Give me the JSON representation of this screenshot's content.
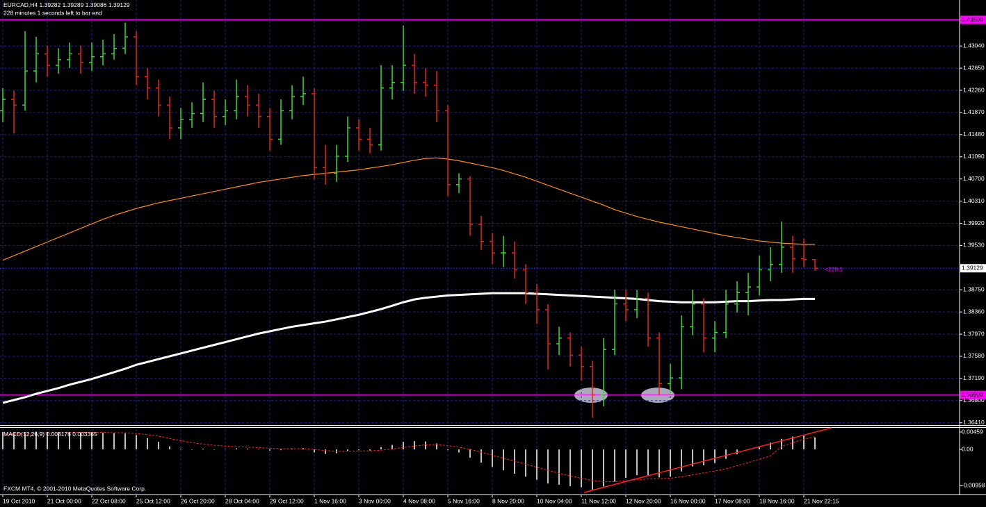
{
  "chart_data": [
    {
      "type": "ohlc",
      "title": "EURCAD,H4",
      "subtitle": "228 minutes 1 seconds left to bar end",
      "footer": "FXCM MT4, © 2001-2010 MetaQuotes Software Corp.",
      "timer_label": "<228:1",
      "categories": [
        "19 Oct 2010",
        null,
        null,
        null,
        "21 Oct 00:00",
        null,
        null,
        null,
        "22 Oct 08:00",
        null,
        null,
        null,
        "25 Oct 12:00",
        null,
        null,
        null,
        "26 Oct 20:00",
        null,
        null,
        null,
        "28 Oct 04:00",
        null,
        null,
        null,
        "29 Oct 12:00",
        null,
        null,
        null,
        "1 Nov 16:00",
        null,
        null,
        null,
        "3 Nov 00:00",
        null,
        null,
        null,
        "4 Nov 08:00",
        null,
        null,
        null,
        "5 Nov 16:00",
        null,
        null,
        null,
        "8 Nov 20:00",
        null,
        null,
        null,
        "10 Nov 04:00",
        null,
        null,
        null,
        "11 Nov 12:00",
        null,
        null,
        null,
        "12 Nov 20:00",
        null,
        null,
        null,
        "16 Nov 00:00",
        null,
        null,
        null,
        "17 Nov 08:00",
        null,
        null,
        null,
        "18 Nov 16:00",
        null,
        null,
        null,
        "21 Nov 22:15",
        null
      ],
      "open": [
        1.419,
        1.421,
        1.42,
        1.426,
        1.429,
        1.427,
        1.428,
        1.429,
        1.4275,
        1.4285,
        1.429,
        1.43,
        1.432,
        1.425,
        1.423,
        1.42,
        1.416,
        1.4175,
        1.4185,
        1.421,
        1.418,
        1.419,
        1.4215,
        1.42,
        1.418,
        1.414,
        1.419,
        1.4215,
        1.422,
        1.409,
        1.408,
        1.411,
        1.416,
        1.414,
        1.413,
        1.423,
        1.424,
        1.427,
        1.424,
        1.4235,
        1.419,
        1.406,
        1.407,
        1.399,
        1.396,
        1.394,
        1.394,
        1.391,
        1.387,
        1.384,
        1.378,
        1.379,
        1.376,
        1.374,
        1.369,
        1.377,
        1.385,
        1.384,
        1.386,
        1.379,
        1.371,
        1.372,
        1.381,
        1.385,
        1.379,
        1.38,
        1.385,
        1.387,
        1.388,
        1.391,
        1.392,
        1.395,
        1.393,
        1.39282
      ],
      "high": [
        1.423,
        1.4225,
        1.433,
        1.432,
        1.4305,
        1.43,
        1.431,
        1.4305,
        1.431,
        1.4315,
        1.4325,
        1.4345,
        1.433,
        1.4265,
        1.4245,
        1.4215,
        1.4195,
        1.4205,
        1.424,
        1.4225,
        1.421,
        1.4245,
        1.4235,
        1.422,
        1.4195,
        1.421,
        1.4235,
        1.425,
        1.423,
        1.413,
        1.413,
        1.418,
        1.4175,
        1.416,
        1.427,
        1.427,
        1.434,
        1.429,
        1.4265,
        1.426,
        1.42,
        1.408,
        1.4075,
        1.4005,
        1.3975,
        1.397,
        1.396,
        1.392,
        1.3885,
        1.385,
        1.381,
        1.38,
        1.3775,
        1.375,
        1.379,
        1.3875,
        1.3875,
        1.3875,
        1.387,
        1.38,
        1.3745,
        1.383,
        1.3875,
        1.386,
        1.382,
        1.3875,
        1.389,
        1.3905,
        1.3935,
        1.395,
        1.3995,
        1.397,
        1.3965,
        1.39289
      ],
      "low": [
        1.417,
        1.415,
        1.419,
        1.424,
        1.425,
        1.4255,
        1.4265,
        1.4255,
        1.426,
        1.427,
        1.428,
        1.429,
        1.4235,
        1.421,
        1.418,
        1.414,
        1.414,
        1.416,
        1.417,
        1.416,
        1.4165,
        1.4175,
        1.418,
        1.416,
        1.412,
        1.413,
        1.4175,
        1.42,
        1.407,
        1.406,
        1.4065,
        1.41,
        1.412,
        1.4115,
        1.412,
        1.421,
        1.4225,
        1.422,
        1.4215,
        1.417,
        1.404,
        1.4045,
        1.397,
        1.3945,
        1.392,
        1.3915,
        1.3895,
        1.385,
        1.3815,
        1.3735,
        1.376,
        1.374,
        1.3715,
        1.365,
        1.367,
        1.376,
        1.382,
        1.3825,
        1.3775,
        1.369,
        1.369,
        1.37,
        1.3795,
        1.3765,
        1.3765,
        1.379,
        1.3835,
        1.383,
        1.3865,
        1.389,
        1.3905,
        1.3905,
        1.3915,
        1.39086
      ],
      "close": [
        1.421,
        1.42,
        1.426,
        1.429,
        1.427,
        1.428,
        1.429,
        1.4275,
        1.4285,
        1.429,
        1.43,
        1.432,
        1.425,
        1.423,
        1.42,
        1.416,
        1.4175,
        1.4185,
        1.421,
        1.418,
        1.419,
        1.4215,
        1.42,
        1.418,
        1.414,
        1.419,
        1.4215,
        1.422,
        1.409,
        1.408,
        1.411,
        1.416,
        1.414,
        1.413,
        1.423,
        1.424,
        1.427,
        1.424,
        1.4235,
        1.419,
        1.406,
        1.407,
        1.399,
        1.396,
        1.394,
        1.394,
        1.391,
        1.387,
        1.384,
        1.378,
        1.379,
        1.376,
        1.374,
        1.369,
        1.377,
        1.385,
        1.384,
        1.386,
        1.379,
        1.371,
        1.372,
        1.381,
        1.385,
        1.379,
        1.38,
        1.385,
        1.387,
        1.388,
        1.391,
        1.392,
        1.395,
        1.393,
        1.39282,
        1.39129
      ],
      "up_color": "#3cd83c",
      "down_color": "#e8221a",
      "ma_lines": [
        {
          "color": "#ff8c1a",
          "values": [
            1.3927,
            1.3935,
            1.3943,
            1.3951,
            1.3959,
            1.3967,
            1.3975,
            1.3983,
            1.3991,
            1.3999,
            1.4006,
            1.4012,
            1.4018,
            1.4023,
            1.4028,
            1.4032,
            1.4036,
            1.404,
            1.4044,
            1.4048,
            1.4052,
            1.4056,
            1.406,
            1.4064,
            1.4067,
            1.407,
            1.4073,
            1.4076,
            1.4078,
            1.408,
            1.4082,
            1.4084,
            1.4086,
            1.4089,
            1.4092,
            1.4095,
            1.4099,
            1.4103,
            1.4106,
            1.4107,
            1.4105,
            1.4102,
            1.4098,
            1.4094,
            1.409,
            1.4085,
            1.4079,
            1.4073,
            1.4066,
            1.4059,
            1.4052,
            1.4045,
            1.4038,
            1.4031,
            1.4024,
            1.4016,
            1.401,
            1.4004,
            1.3999,
            1.3994,
            1.399,
            1.3986,
            1.3982,
            1.3978,
            1.3974,
            1.397,
            1.3967,
            1.3964,
            1.3961,
            1.3959,
            1.3957,
            1.3956,
            1.3955,
            1.3955
          ]
        },
        {
          "color": "#ffffff",
          "values": [
            1.3676,
            1.3681,
            1.3686,
            1.3692,
            1.3697,
            1.3702,
            1.3708,
            1.3713,
            1.3718,
            1.3724,
            1.373,
            1.3736,
            1.3743,
            1.3748,
            1.3753,
            1.3758,
            1.3763,
            1.3768,
            1.3773,
            1.3778,
            1.3783,
            1.3788,
            1.3793,
            1.3798,
            1.3802,
            1.3806,
            1.381,
            1.3813,
            1.3816,
            1.3819,
            1.3823,
            1.3827,
            1.3831,
            1.3836,
            1.3841,
            1.3847,
            1.3853,
            1.3858,
            1.3861,
            1.3863,
            1.3865,
            1.3866,
            1.3867,
            1.3868,
            1.3869,
            1.3869,
            1.3869,
            1.3869,
            1.3868,
            1.3867,
            1.3866,
            1.3865,
            1.3864,
            1.3863,
            1.3862,
            1.3861,
            1.386,
            1.3859,
            1.3857,
            1.3855,
            1.3854,
            1.3853,
            1.3853,
            1.3853,
            1.3853,
            1.3854,
            1.3855,
            1.3855,
            1.3856,
            1.3857,
            1.3857,
            1.3858,
            1.3859,
            1.3859
          ]
        }
      ],
      "hlines": [
        {
          "value": 1.435,
          "label": "1.43500"
        },
        {
          "value": 1.369,
          "label": "1.36900"
        }
      ],
      "hline_color": "#ff00ff",
      "price_line_color": "#3030ff",
      "ylim": [
        1.3637,
        1.4358
      ],
      "yticks": [
        {
          "value": 1.4304,
          "label": "1.43040"
        },
        {
          "value": 1.4265,
          "label": "1.42650"
        },
        {
          "value": 1.4226,
          "label": "1.42260"
        },
        {
          "value": 1.4187,
          "label": "1.41870"
        },
        {
          "value": 1.4148,
          "label": "1.41480"
        },
        {
          "value": 1.4109,
          "label": "1.41090"
        },
        {
          "value": 1.407,
          "label": "1.40700"
        },
        {
          "value": 1.4031,
          "label": "1.40310"
        },
        {
          "value": 1.3992,
          "label": "1.39920"
        },
        {
          "value": 1.3953,
          "label": "1.39530"
        },
        {
          "value": 1.3875,
          "label": "1.38750"
        },
        {
          "value": 1.3836,
          "label": "1.38360"
        },
        {
          "value": 1.3797,
          "label": "1.37970"
        },
        {
          "value": 1.3758,
          "label": "1.37580"
        },
        {
          "value": 1.3719,
          "label": "1.37190"
        },
        {
          "value": 1.368,
          "label": "1.36800"
        },
        {
          "value": 1.3641,
          "label": "1.36410"
        }
      ],
      "grid": true,
      "grid_color": "#23238f"
    },
    {
      "type": "macd",
      "title": "MACD(12,26,9)",
      "values": [
        0.0046,
        0.0045,
        0.0046,
        0.0047,
        0.0046,
        0.0046,
        0.0045,
        0.0045,
        0.0044,
        0.0044,
        0.0043,
        0.0042,
        0.0038,
        0.003,
        0.002,
        0.0008,
        0.0002,
        0.0,
        0.0002,
        0.0,
        0.0001,
        0.0003,
        0.0002,
        0.0001,
        -0.0003,
        -0.0002,
        0.0001,
        0.0003,
        -0.0008,
        -0.0012,
        -0.001,
        -0.0004,
        -0.0002,
        -0.0003,
        0.0006,
        0.0012,
        0.002,
        0.0022,
        0.0021,
        0.0016,
        -0.0002,
        -0.0008,
        -0.0022,
        -0.0035,
        -0.0046,
        -0.0055,
        -0.0064,
        -0.0072,
        -0.008,
        -0.009,
        -0.0093,
        -0.0097,
        -0.01,
        -0.0106,
        -0.0098,
        -0.0085,
        -0.0075,
        -0.0068,
        -0.0068,
        -0.0074,
        -0.0072,
        -0.0058,
        -0.0045,
        -0.0042,
        -0.0036,
        -0.0025,
        -0.0013,
        -0.0002,
        0.0008,
        0.0018,
        0.0028,
        0.0034,
        0.0036,
        0.003176
      ],
      "signal": [
        0.004,
        0.0041,
        0.0042,
        0.0043,
        0.0044,
        0.0044,
        0.0045,
        0.0045,
        0.0045,
        0.0045,
        0.0044,
        0.0044,
        0.0042,
        0.0039,
        0.0035,
        0.0029,
        0.0023,
        0.0018,
        0.0014,
        0.0011,
        0.0009,
        0.0007,
        0.0006,
        0.0005,
        0.0003,
        0.0002,
        0.0002,
        0.0002,
        0.0,
        -0.0003,
        -0.0005,
        -0.0005,
        -0.0004,
        -0.0004,
        -0.0002,
        0.0001,
        0.0005,
        0.0009,
        0.0012,
        0.0013,
        0.001,
        0.0006,
        0.0,
        -0.0007,
        -0.0015,
        -0.0023,
        -0.0031,
        -0.0039,
        -0.0047,
        -0.0055,
        -0.0063,
        -0.007,
        -0.0076,
        -0.0082,
        -0.0085,
        -0.0085,
        -0.0083,
        -0.008,
        -0.0078,
        -0.0077,
        -0.0076,
        -0.0072,
        -0.0067,
        -0.0062,
        -0.0057,
        -0.0051,
        -0.0043,
        -0.0035,
        -0.0026,
        -0.0017,
        0.0008,
        0.0018,
        0.0027,
        0.003365
      ],
      "color": "#ffffff",
      "signal_color": "#ff2020",
      "ylim": [
        -0.0119,
        0.0057
      ],
      "yticks": [
        0.00459,
        {
          "value": 0,
          "label": "0.00"
        },
        -0.00958
      ]
    }
  ]
}
